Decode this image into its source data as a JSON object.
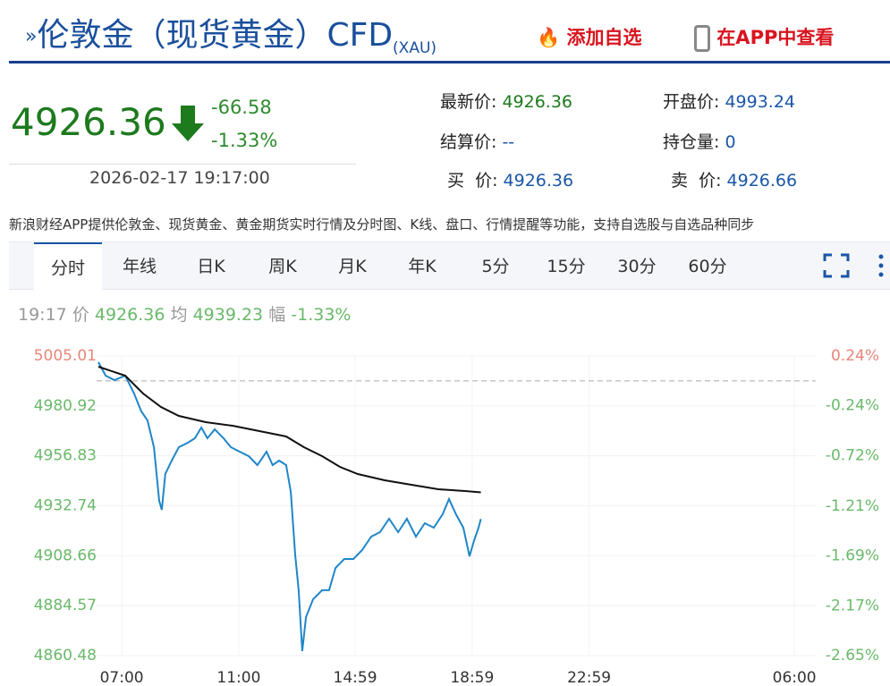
{
  "header": {
    "title": "伦敦金（现货黄金）CFD",
    "symbol": "(XAU)",
    "add_watch": "添加自选",
    "view_in_app": "在APP中查看"
  },
  "quote": {
    "price": "4926.36",
    "change": "-66.58",
    "change_pct": "-1.33%",
    "time": "2026-02-17 19:17:00"
  },
  "info": [
    {
      "label": "最新价:",
      "value": "4926.36"
    },
    {
      "label": "开盘价:",
      "value": "4993.24"
    },
    {
      "label": "结算价:",
      "value": "--"
    },
    {
      "label": "持仓量:",
      "value": "0"
    },
    {
      "label": "买  价:",
      "value": "4926.36"
    },
    {
      "label": "卖  价:",
      "value": "4926.66"
    }
  ],
  "banner": "新浪财经APP提供伦敦金、现货黄金、黄金期货实时行情及分时图、K线、盘口、行情提醒等功能，支持自选股与自选品种同步",
  "tabs": [
    "分时",
    "年线",
    "日K",
    "周K",
    "月K",
    "年K",
    "5分",
    "15分",
    "30分",
    "60分"
  ],
  "status": {
    "time": "19:17",
    "price": "4926.36",
    "avg": "4939.23",
    "pct_label": "幅",
    "pct": "-1.33%"
  },
  "chart_data": {
    "type": "line",
    "xlim": [
      6.14,
      30.73
    ],
    "xticks": [
      {
        "value": 7,
        "label": "07:00"
      },
      {
        "value": 11,
        "label": "11:00"
      },
      {
        "value": 14.98,
        "label": "14:59"
      },
      {
        "value": 18.98,
        "label": "18:59"
      },
      {
        "value": 22.98,
        "label": "22:59"
      },
      {
        "value": 30,
        "label": "06:00"
      }
    ],
    "ylim": [
      4860.48,
      5005.01
    ],
    "yticks": [
      5005.01,
      4980.92,
      4956.83,
      4932.74,
      4908.66,
      4884.57,
      4860.48
    ],
    "y2lim": [
      -2.65,
      0.24
    ],
    "y2ticks": [
      {
        "value": 0.24,
        "label": "0.24%"
      },
      {
        "value": -0.24,
        "label": "-0.24%"
      },
      {
        "value": -0.72,
        "label": "-0.72%"
      },
      {
        "value": -1.21,
        "label": "-1.21%"
      },
      {
        "value": -1.69,
        "label": "-1.69%"
      },
      {
        "value": -2.17,
        "label": "-2.17%"
      },
      {
        "value": -2.65,
        "label": "-2.65%"
      }
    ],
    "grid": true,
    "series": [
      {
        "name": "价",
        "color": "#1f86c8",
        "x": [
          6.2,
          6.45,
          6.75,
          7.12,
          7.42,
          7.67,
          7.88,
          8.1,
          8.28,
          8.37,
          8.49,
          8.71,
          8.95,
          9.26,
          9.5,
          9.72,
          9.93,
          10.18,
          10.48,
          10.73,
          11.03,
          11.34,
          11.64,
          11.95,
          12.16,
          12.38,
          12.62,
          12.78,
          12.93,
          13.05,
          13.17,
          13.3,
          13.54,
          13.85,
          14.09,
          14.31,
          14.61,
          14.92,
          15.22,
          15.53,
          15.83,
          16.14,
          16.45,
          16.75,
          17.06,
          17.36,
          17.67,
          17.97,
          18.19,
          18.43,
          18.68,
          18.89,
          19.04,
          19.2,
          19.28
        ],
        "values": [
          5001.99,
          4995.52,
          4993.36,
          4995.52,
          4986.89,
          4978.26,
          4973.95,
          4961.01,
          4935.12,
          4930.81,
          4948.06,
          4954.54,
          4961.01,
          4963.16,
          4965.32,
          4970.5,
          4965.32,
          4969.64,
          4965.32,
          4961.01,
          4958.85,
          4956.69,
          4952.38,
          4958.85,
          4952.38,
          4954.54,
          4952.38,
          4939.44,
          4909.24,
          4892.0,
          4862.65,
          4879.03,
          4887.67,
          4892.0,
          4892.0,
          4902.77,
          4907.08,
          4907.08,
          4911.4,
          4917.87,
          4920.02,
          4926.48,
          4920.02,
          4926.48,
          4917.87,
          4924.33,
          4922.18,
          4928.65,
          4935.99,
          4928.65,
          4922.18,
          4908.38,
          4915.71,
          4922.18,
          4926.36
        ]
      },
      {
        "name": "均",
        "color": "#111111",
        "x": [
          6.2,
          7.12,
          7.73,
          8.34,
          8.95,
          9.87,
          10.79,
          11.71,
          12.62,
          13.23,
          13.85,
          14.46,
          15.07,
          15.99,
          16.9,
          17.82,
          18.74,
          19.28
        ],
        "values": [
          4999.83,
          4995.52,
          4986.89,
          4980.42,
          4976.11,
          4973.09,
          4971.36,
          4968.77,
          4966.18,
          4961.01,
          4956.69,
          4951.52,
          4948.06,
          4945.05,
          4942.89,
          4940.73,
          4939.87,
          4939.23
        ]
      }
    ]
  }
}
